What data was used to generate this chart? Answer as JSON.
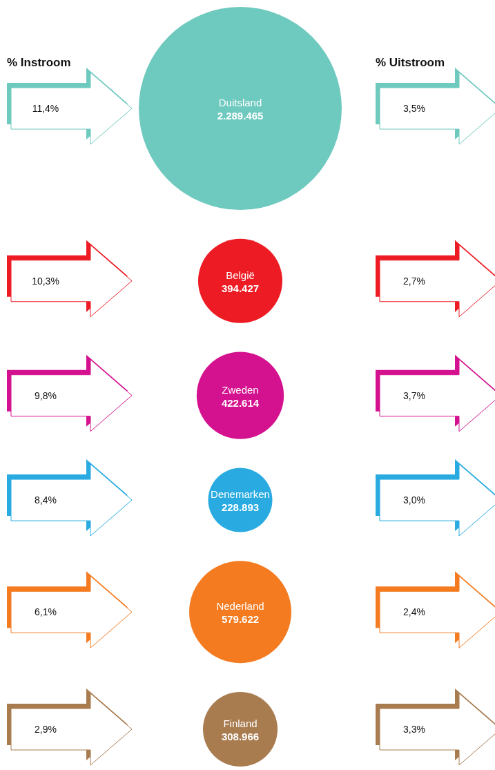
{
  "chart_data": {
    "type": "other",
    "categories": [
      "Duitsland",
      "België",
      "Zweden",
      "Denemarken",
      "Nederland",
      "Finland"
    ],
    "values": [
      2289465,
      394427,
      422614,
      228893,
      579622,
      308966
    ],
    "value_labels": [
      "2.289.465",
      "394.427",
      "422.614",
      "228.893",
      "579.622",
      "308.966"
    ],
    "colors": [
      "#6ec9bf",
      "#ed1c24",
      "#d4128f",
      "#29abe2",
      "#f47b20",
      "#a97c50"
    ],
    "series": [
      {
        "name": "% Instroom",
        "colors": [
          "#6ec9bf",
          "#ed1c24",
          "#d4128f",
          "#29abe2",
          "#f47b20",
          "#a97c50"
        ],
        "values": [
          11.4,
          10.3,
          9.8,
          8.4,
          6.1,
          2.9
        ],
        "value_labels": [
          "11,4%",
          "10,3%",
          "9,8%",
          "8,4%",
          "6,1%",
          "2,9%"
        ]
      },
      {
        "name": "% Uitstroom",
        "colors": [
          "#6ec9bf",
          "#ed1c24",
          "#d4128f",
          "#29abe2",
          "#f47b20",
          "#a97c50"
        ],
        "values": [
          3.5,
          2.7,
          3.7,
          3.0,
          2.4,
          3.3
        ],
        "value_labels": [
          "3,5%",
          "2,7%",
          "3,7%",
          "3,0%",
          "2,4%",
          "3,3%"
        ]
      }
    ]
  }
}
